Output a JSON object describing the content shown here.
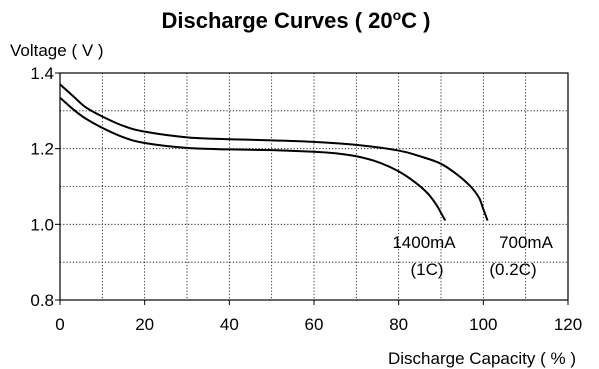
{
  "chart_data": {
    "type": "line",
    "title": "Discharge Curves ( 20",
    "title_superscript": "o",
    "title_suffix": "C )",
    "ylabel": "Voltage ( V )",
    "xlabel": "Discharge  Capacity ( % )",
    "xlim": [
      0,
      120
    ],
    "ylim": [
      0.8,
      1.4
    ],
    "xticks": [
      "0",
      "20",
      "40",
      "60",
      "80",
      "100",
      "120"
    ],
    "yticks": [
      "0.8",
      "1.0",
      "1.2",
      "1.4"
    ],
    "grid": true,
    "grid_style": "dotted",
    "series": [
      {
        "name": "700mA (0.2C)",
        "label_line1": "700mA",
        "label_line2": "(0.2C)",
        "x": [
          0,
          3,
          6,
          10,
          15,
          20,
          30,
          40,
          50,
          60,
          70,
          80,
          85,
          90,
          94,
          97,
          99,
          100,
          101
        ],
        "y": [
          1.37,
          1.34,
          1.31,
          1.285,
          1.26,
          1.245,
          1.23,
          1.225,
          1.222,
          1.218,
          1.21,
          1.195,
          1.18,
          1.16,
          1.13,
          1.1,
          1.07,
          1.04,
          1.01
        ]
      },
      {
        "name": "1400mA (1C)",
        "label_line1": "1400mA",
        "label_line2": "(1C)",
        "x": [
          0,
          3,
          6,
          10,
          15,
          20,
          30,
          40,
          50,
          60,
          65,
          70,
          75,
          80,
          84,
          87,
          89,
          90,
          91
        ],
        "y": [
          1.335,
          1.305,
          1.28,
          1.255,
          1.23,
          1.215,
          1.202,
          1.198,
          1.196,
          1.192,
          1.188,
          1.18,
          1.165,
          1.14,
          1.11,
          1.08,
          1.05,
          1.03,
          1.01
        ]
      }
    ]
  }
}
